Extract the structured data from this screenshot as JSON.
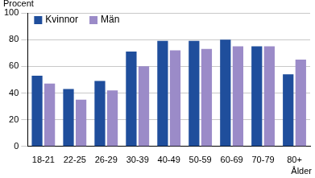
{
  "chart_data": {
    "type": "bar",
    "y_label": "Procent",
    "x_label": "Ålder",
    "categories": [
      "18-21",
      "22-25",
      "26-29",
      "30-39",
      "40-49",
      "50-59",
      "60-69",
      "70-79",
      "80+"
    ],
    "series": [
      {
        "name": "Kvinnor",
        "color": "#1f4e9c",
        "values": [
          53,
          43,
          49,
          71,
          79,
          79,
          80,
          75,
          54
        ]
      },
      {
        "name": "Män",
        "color": "#9b8bc8",
        "values": [
          47,
          35,
          42,
          60,
          72,
          73,
          75,
          75,
          65
        ]
      }
    ],
    "ylim": [
      0,
      100
    ],
    "yticks": [
      0,
      20,
      40,
      60,
      80,
      100
    ],
    "grid": true,
    "legend": "upper left"
  }
}
